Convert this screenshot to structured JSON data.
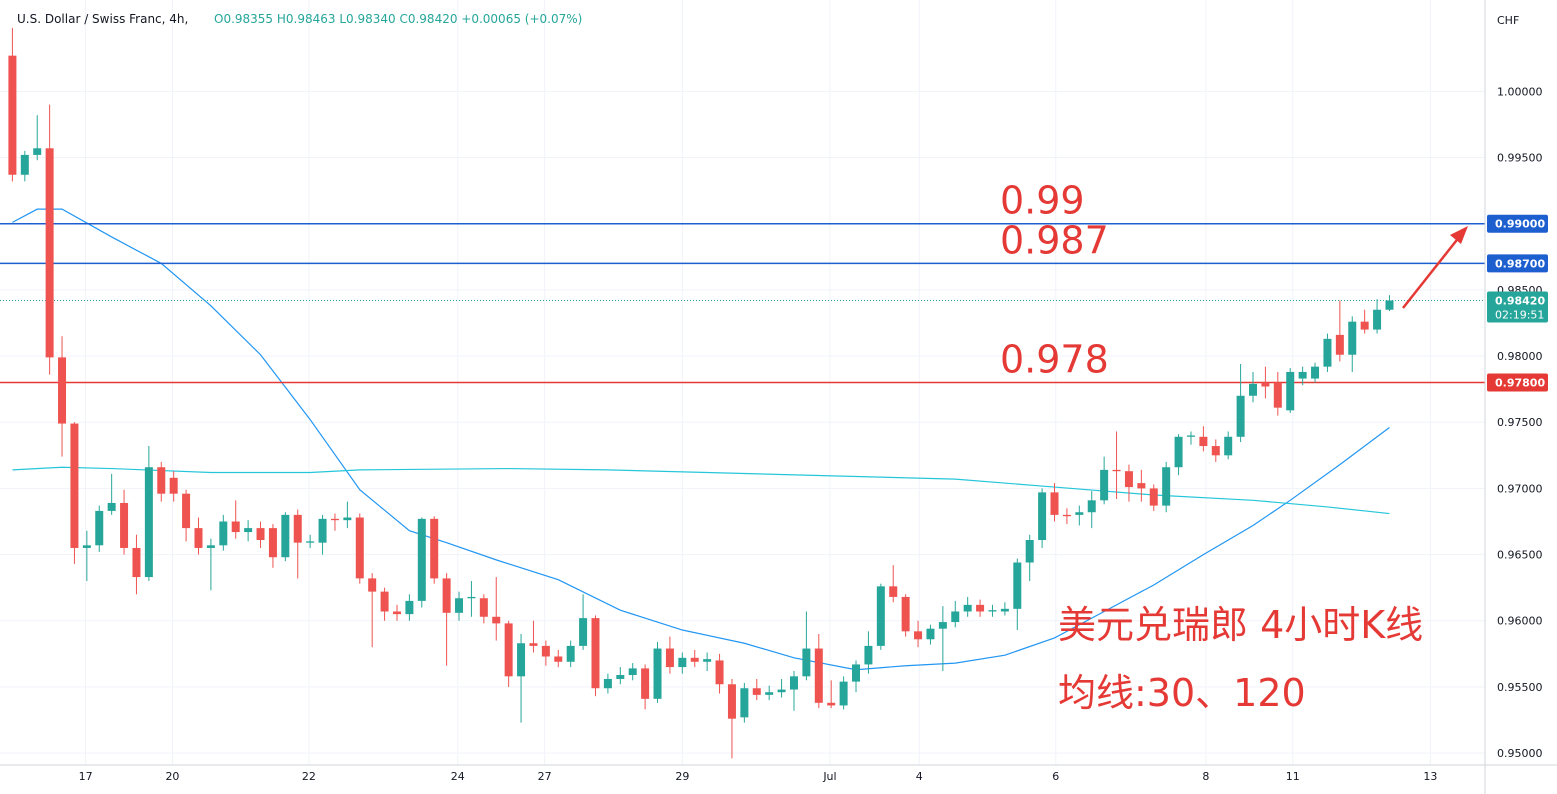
{
  "chart_data": {
    "type": "candlestick",
    "title": "U.S. Dollar / Swiss Franc, 4h,",
    "subtitle": "O0.98355 H0.98463 L0.98340 C0.98420 +0.00065 (+0.07%)",
    "y_unit": "CHF",
    "up_color": "#26a69a",
    "down_color": "#ef5350",
    "open": [
      1.0027,
      0.9937,
      0.9952,
      0.9957,
      0.9799,
      0.9749,
      0.9655,
      0.9657,
      0.9683,
      0.9689,
      0.9655,
      0.9633,
      0.9716,
      0.9708,
      0.9696,
      0.967,
      0.9655,
      0.9657,
      0.9675,
      0.9667,
      0.967,
      0.967,
      0.9648,
      0.968,
      0.9659,
      0.9659,
      0.9677,
      0.9676,
      0.9678,
      0.9632,
      0.9622,
      0.9607,
      0.9605,
      0.9615,
      0.9677,
      0.9632,
      0.9606,
      0.9617,
      0.9617,
      0.9603,
      0.9598,
      0.9558,
      0.9583,
      0.9581,
      0.9573,
      0.9569,
      0.9581,
      0.9602,
      0.9549,
      0.9556,
      0.9559,
      0.9564,
      0.9541,
      0.9579,
      0.9565,
      0.9572,
      0.9569,
      0.957,
      0.9552,
      0.9527,
      0.9549,
      0.9544,
      0.9546,
      0.9548,
      0.9558,
      0.9579,
      0.9538,
      0.9536,
      0.9554,
      0.9567,
      0.9581,
      0.9626,
      0.9618,
      0.9592,
      0.9586,
      0.9594,
      0.9599,
      0.9607,
      0.9612,
      0.9607,
      0.9607,
      0.9609,
      0.9644,
      0.9661,
      0.9697,
      0.968,
      0.968,
      0.9682,
      0.9691,
      0.9714,
      0.9713,
      0.9704,
      0.97,
      0.9687,
      0.9716,
      0.9739,
      0.9739,
      0.9732,
      0.9725,
      0.9739,
      0.977,
      0.978,
      0.978,
      0.9759,
      0.9783,
      0.9783,
      0.9792,
      0.9816,
      0.9801,
      0.9826,
      0.982,
      0.9835
    ],
    "high": [
      1.0048,
      0.9955,
      0.9982,
      0.999,
      0.9815,
      0.975,
      0.9668,
      0.9687,
      0.9711,
      0.9699,
      0.9665,
      0.9732,
      0.972,
      0.9713,
      0.9699,
      0.9678,
      0.9662,
      0.968,
      0.9691,
      0.9676,
      0.9675,
      0.9673,
      0.9682,
      0.9684,
      0.9665,
      0.968,
      0.9681,
      0.969,
      0.9681,
      0.9636,
      0.9625,
      0.9612,
      0.962,
      0.9678,
      0.9679,
      0.9636,
      0.9622,
      0.963,
      0.962,
      0.9633,
      0.96,
      0.959,
      0.96,
      0.9585,
      0.9578,
      0.9585,
      0.962,
      0.9604,
      0.956,
      0.9565,
      0.9568,
      0.9567,
      0.9584,
      0.9588,
      0.9576,
      0.9578,
      0.9576,
      0.9575,
      0.9556,
      0.9553,
      0.9556,
      0.9551,
      0.9556,
      0.9562,
      0.9607,
      0.959,
      0.9555,
      0.9558,
      0.957,
      0.9592,
      0.9628,
      0.9642,
      0.962,
      0.96,
      0.9597,
      0.9611,
      0.9615,
      0.9618,
      0.9616,
      0.9612,
      0.9614,
      0.9647,
      0.9665,
      0.97,
      0.9704,
      0.9685,
      0.9687,
      0.9698,
      0.9724,
      0.9743,
      0.9718,
      0.9714,
      0.9703,
      0.972,
      0.9741,
      0.9743,
      0.9747,
      0.9737,
      0.9743,
      0.9794,
      0.9788,
      0.9792,
      0.9788,
      0.9791,
      0.9792,
      0.9795,
      0.9817,
      0.9842,
      0.983,
      0.9835,
      0.9843,
      0.9846
    ],
    "low": [
      0.9932,
      0.9932,
      0.9948,
      0.9786,
      0.9724,
      0.9643,
      0.963,
      0.9652,
      0.968,
      0.965,
      0.962,
      0.963,
      0.969,
      0.969,
      0.966,
      0.965,
      0.9623,
      0.9653,
      0.9662,
      0.966,
      0.9655,
      0.964,
      0.9645,
      0.9632,
      0.9655,
      0.965,
      0.9668,
      0.967,
      0.9628,
      0.958,
      0.96,
      0.96,
      0.96,
      0.961,
      0.9628,
      0.9566,
      0.96,
      0.9603,
      0.9598,
      0.9585,
      0.955,
      0.9523,
      0.9576,
      0.9566,
      0.9565,
      0.9565,
      0.9578,
      0.9543,
      0.9545,
      0.9552,
      0.9555,
      0.9533,
      0.9538,
      0.956,
      0.956,
      0.9565,
      0.9562,
      0.9545,
      0.9496,
      0.9523,
      0.954,
      0.954,
      0.9542,
      0.9532,
      0.9555,
      0.9534,
      0.9534,
      0.9533,
      0.9546,
      0.956,
      0.9578,
      0.9614,
      0.9588,
      0.958,
      0.9582,
      0.9562,
      0.9595,
      0.9603,
      0.9603,
      0.9603,
      0.9604,
      0.9593,
      0.963,
      0.9655,
      0.9675,
      0.9673,
      0.9672,
      0.967,
      0.9688,
      0.9692,
      0.969,
      0.969,
      0.9683,
      0.9682,
      0.971,
      0.9733,
      0.9728,
      0.972,
      0.9722,
      0.9735,
      0.9765,
      0.9768,
      0.9755,
      0.9757,
      0.9778,
      0.978,
      0.9788,
      0.9796,
      0.9788,
      0.9817,
      0.9817,
      0.9834
    ],
    "close": [
      0.9937,
      0.9952,
      0.9957,
      0.9799,
      0.9749,
      0.9655,
      0.9657,
      0.9683,
      0.9689,
      0.9655,
      0.9633,
      0.9716,
      0.9696,
      0.9696,
      0.967,
      0.9655,
      0.9657,
      0.9675,
      0.9667,
      0.967,
      0.9661,
      0.9648,
      0.968,
      0.9659,
      0.966,
      0.9677,
      0.9676,
      0.9678,
      0.9632,
      0.9622,
      0.9607,
      0.9605,
      0.9615,
      0.9677,
      0.9632,
      0.9606,
      0.9617,
      0.9618,
      0.9603,
      0.9598,
      0.9558,
      0.9583,
      0.9581,
      0.9573,
      0.9569,
      0.9581,
      0.9602,
      0.9549,
      0.9556,
      0.9559,
      0.9564,
      0.9541,
      0.9579,
      0.9565,
      0.9572,
      0.9569,
      0.9571,
      0.9552,
      0.9526,
      0.9549,
      0.9544,
      0.9546,
      0.9548,
      0.9558,
      0.9579,
      0.9538,
      0.9536,
      0.9554,
      0.9567,
      0.9581,
      0.9626,
      0.9618,
      0.9592,
      0.9586,
      0.9594,
      0.9599,
      0.9607,
      0.9612,
      0.9607,
      0.9608,
      0.9609,
      0.9644,
      0.9661,
      0.9697,
      0.968,
      0.9679,
      0.9682,
      0.9691,
      0.9714,
      0.9713,
      0.9701,
      0.97,
      0.9687,
      0.9716,
      0.9739,
      0.974,
      0.9732,
      0.9725,
      0.9739,
      0.977,
      0.9779,
      0.9777,
      0.9761,
      0.9788,
      0.9788,
      0.9792,
      0.9813,
      0.9801,
      0.9826,
      0.982,
      0.9835,
      0.9842
    ],
    "overlays": [
      {
        "color": "#2196f3",
        "x": [
          0,
          2,
          4,
          8,
          12,
          16,
          20,
          24,
          28,
          32,
          35,
          39,
          44,
          49,
          54,
          59,
          63,
          68,
          72,
          76,
          80,
          84,
          88,
          92,
          96,
          100,
          103,
          107,
          111
        ],
        "values": [
          0.9901,
          0.9911,
          0.9911,
          0.989,
          0.987,
          0.9838,
          0.9801,
          0.9752,
          0.9699,
          0.9668,
          0.9659,
          0.9646,
          0.9631,
          0.9608,
          0.9593,
          0.9583,
          0.9572,
          0.9563,
          0.9566,
          0.9568,
          0.9574,
          0.9587,
          0.9607,
          0.9627,
          0.965,
          0.9672,
          0.9691,
          0.9718,
          0.9746
        ]
      },
      {
        "color": "#26c6da",
        "x": [
          0,
          4,
          8,
          16,
          24,
          28,
          40,
          48,
          56,
          68,
          76,
          84,
          92,
          100,
          106,
          111
        ],
        "values": [
          0.9714,
          0.9716,
          0.9715,
          0.9712,
          0.9712,
          0.9714,
          0.9715,
          0.9714,
          0.9712,
          0.9709,
          0.9707,
          0.9701,
          0.9695,
          0.9691,
          0.9686,
          0.9681
        ]
      }
    ],
    "hlines": [
      {
        "value": 0.99,
        "label": "0.99000",
        "annotation": "0.99",
        "color": "#1e5fcf"
      },
      {
        "value": 0.987,
        "label": "0.98700",
        "annotation": "0.987",
        "color": "#1e5fcf"
      },
      {
        "value": 0.978,
        "label": "0.97800",
        "annotation": "0.978",
        "color": "#e53935"
      }
    ],
    "annotation_color": "#e53935",
    "last_price": {
      "value": 0.9842,
      "label": "0.98420",
      "countdown": "02:19:51"
    },
    "annotations": [
      "美元兑瑞郎 4小时K线",
      "均线:30、120"
    ],
    "xlim": [
      -1,
      118.7
    ],
    "xticks": [
      {
        "value": 5.9,
        "label": "17"
      },
      {
        "value": 12.9,
        "label": "20"
      },
      {
        "value": 23.9,
        "label": "22"
      },
      {
        "value": 35.9,
        "label": "24"
      },
      {
        "value": 42.9,
        "label": "27"
      },
      {
        "value": 54,
        "label": "29"
      },
      {
        "value": 65.9,
        "label": "Jul"
      },
      {
        "value": 73.1,
        "label": "4"
      },
      {
        "value": 84.1,
        "label": "6"
      },
      {
        "value": 96.2,
        "label": "8"
      },
      {
        "value": 103.2,
        "label": "11"
      },
      {
        "value": 114.3,
        "label": "13"
      }
    ],
    "ylim": [
      0.9491,
      1.0063
    ],
    "yticks": [
      {
        "value": 0.95,
        "label": "0.95000"
      },
      {
        "value": 0.955,
        "label": "0.95500"
      },
      {
        "value": 0.96,
        "label": "0.96000"
      },
      {
        "value": 0.965,
        "label": "0.96500"
      },
      {
        "value": 0.97,
        "label": "0.97000"
      },
      {
        "value": 0.975,
        "label": "0.97500"
      },
      {
        "value": 0.98,
        "label": "0.98000"
      },
      {
        "value": 0.985,
        "label": "0.98500"
      },
      {
        "value": 0.99,
        "label": "0.99000"
      },
      {
        "value": 0.995,
        "label": "0.99500"
      },
      {
        "value": 1.0,
        "label": "1.00000"
      }
    ],
    "grid": true
  }
}
